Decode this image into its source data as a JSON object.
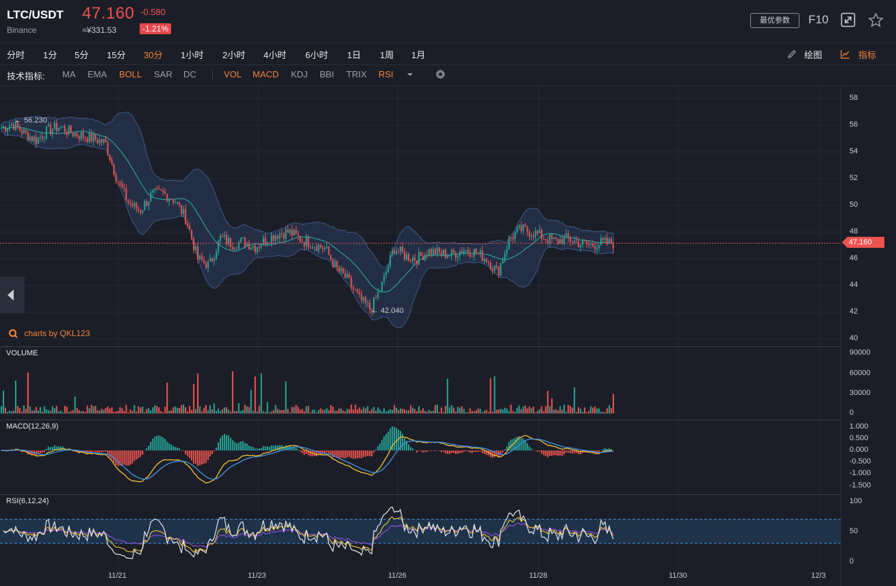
{
  "header": {
    "symbol": "LTC/USDT",
    "exchange": "Binance",
    "price": "47.160",
    "change": "-0.580",
    "cny_price": "≈¥331.53",
    "change_pct": "-1.21%",
    "param_label": "最优参数",
    "f10_label": "F10",
    "icons": [
      "expand-icon",
      "star-icon"
    ]
  },
  "intervals": [
    "分时",
    "1分",
    "5分",
    "15分",
    "30分",
    "1小时",
    "2小时",
    "4小时",
    "6小时",
    "1日",
    "1周",
    "1月"
  ],
  "active_interval": "30分",
  "draw_label": "绘图",
  "indicator_label": "指标",
  "indicator_bar": {
    "title": "技术指标:",
    "main": [
      "MA",
      "EMA",
      "BOLL",
      "SAR",
      "DC"
    ],
    "sub": [
      "VOL",
      "MACD",
      "KDJ",
      "BBI",
      "TRIX",
      "RSI"
    ],
    "active": [
      "BOLL",
      "VOL",
      "MACD",
      "RSI"
    ]
  },
  "colors": {
    "up": "#26a69a",
    "down": "#ef5350",
    "accent": "#f5833b",
    "bg": "#1b1e27"
  },
  "chart_data": [
    {
      "type": "candlestick",
      "title": "",
      "overlay": "BOLL",
      "y_axis_labels": [
        "58",
        "56",
        "54",
        "52",
        "50",
        "48",
        "46",
        "44",
        "42",
        "40"
      ],
      "ylim": [
        40,
        58
      ],
      "current_price": "47.160",
      "annotations": {
        "high": "56.230",
        "low": "42.040"
      },
      "x_labels": [
        "11/21",
        "11/23",
        "11/26",
        "11/28",
        "11/30",
        "12/3"
      ],
      "close_trend": [
        55.8,
        56.1,
        55.4,
        54.9,
        55.6,
        55.9,
        55.5,
        55.2,
        55.0,
        54.7,
        52.0,
        50.2,
        49.6,
        50.8,
        50.9,
        50.4,
        49.0,
        46.0,
        45.5,
        47.6,
        47.1,
        47.3,
        46.9,
        47.5,
        47.9,
        48.0,
        47.4,
        47.1,
        46.8,
        45.3,
        44.4,
        43.0,
        42.2,
        44.1,
        46.8,
        46.2,
        46.0,
        46.6,
        46.4,
        46.3,
        46.7,
        46.5,
        46.0,
        45.0,
        47.5,
        48.2,
        48.0,
        47.6,
        47.3,
        47.5,
        47.2,
        47.0,
        47.2,
        47.16
      ]
    },
    {
      "type": "bar",
      "title": "VOLUME",
      "y_axis_labels": [
        "90000",
        "60000",
        "30000",
        "0"
      ],
      "ylim": [
        0,
        90000
      ]
    },
    {
      "type": "line",
      "title": "MACD(12,26,9)",
      "y_axis_labels": [
        "1.000",
        "0.500",
        "0.000",
        "-0.500",
        "-1.000",
        "-1.500"
      ],
      "ylim": [
        -1.5,
        1.0
      ]
    },
    {
      "type": "line",
      "title": "RSI(6,12,24)",
      "y_axis_labels": [
        "100",
        "50",
        "0"
      ],
      "ylim": [
        0,
        100
      ]
    }
  ],
  "branding": "charts by QKL123"
}
